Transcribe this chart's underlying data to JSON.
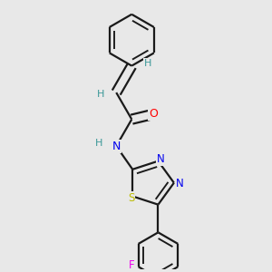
{
  "background_color": "#e8e8e8",
  "bond_color": "#1a1a1a",
  "H_color": "#3a9898",
  "O_color": "#ff0000",
  "N_color": "#0000ee",
  "S_color": "#bbbb00",
  "F_color": "#ee00ee",
  "line_width": 1.6,
  "dbo": 0.018,
  "figsize": [
    3.0,
    3.0
  ],
  "dpi": 100,
  "xlim": [
    0.0,
    1.0
  ],
  "ylim": [
    0.0,
    1.0
  ]
}
